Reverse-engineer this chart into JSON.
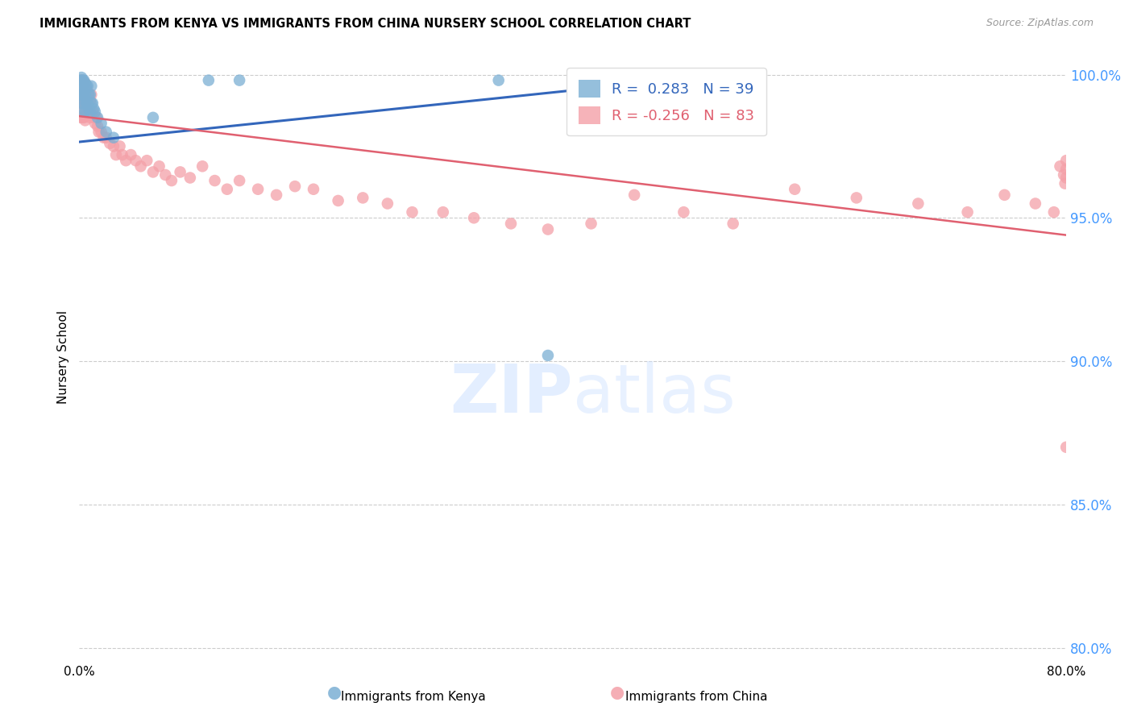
{
  "title": "IMMIGRANTS FROM KENYA VS IMMIGRANTS FROM CHINA NURSERY SCHOOL CORRELATION CHART",
  "source_text": "Source: ZipAtlas.com",
  "ylabel": "Nursery School",
  "xlim": [
    0.0,
    0.8
  ],
  "ylim": [
    0.795,
    1.008
  ],
  "yticks": [
    0.8,
    0.85,
    0.9,
    0.95,
    1.0
  ],
  "ytick_labels": [
    "80.0%",
    "85.0%",
    "90.0%",
    "95.0%",
    "100.0%"
  ],
  "xticks": [
    0.0,
    0.1,
    0.2,
    0.3,
    0.4,
    0.5,
    0.6,
    0.7,
    0.8
  ],
  "xtick_labels": [
    "0.0%",
    "",
    "",
    "",
    "",
    "",
    "",
    "",
    "80.0%"
  ],
  "kenya_R": 0.283,
  "kenya_N": 39,
  "china_R": -0.256,
  "china_N": 83,
  "kenya_color": "#7BAFD4",
  "china_color": "#F4A0A8",
  "kenya_line_color": "#3366BB",
  "china_line_color": "#E06070",
  "kenya_line_x": [
    0.0,
    0.4
  ],
  "kenya_line_y": [
    0.9765,
    0.9945
  ],
  "china_line_x": [
    0.0,
    0.8
  ],
  "china_line_y": [
    0.9855,
    0.944
  ],
  "kenya_x": [
    0.001,
    0.001,
    0.001,
    0.002,
    0.002,
    0.002,
    0.002,
    0.003,
    0.003,
    0.003,
    0.003,
    0.004,
    0.004,
    0.004,
    0.005,
    0.005,
    0.005,
    0.006,
    0.006,
    0.007,
    0.007,
    0.008,
    0.008,
    0.009,
    0.009,
    0.01,
    0.01,
    0.011,
    0.012,
    0.013,
    0.015,
    0.018,
    0.022,
    0.028,
    0.06,
    0.105,
    0.13,
    0.34,
    0.38
  ],
  "kenya_y": [
    0.998,
    0.996,
    0.993,
    0.999,
    0.996,
    0.993,
    0.99,
    0.998,
    0.996,
    0.993,
    0.99,
    0.998,
    0.993,
    0.987,
    0.997,
    0.993,
    0.987,
    0.996,
    0.99,
    0.996,
    0.99,
    0.993,
    0.988,
    0.993,
    0.987,
    0.996,
    0.99,
    0.99,
    0.988,
    0.987,
    0.985,
    0.983,
    0.98,
    0.978,
    0.985,
    0.998,
    0.998,
    0.998,
    0.902
  ],
  "china_x": [
    0.001,
    0.001,
    0.002,
    0.002,
    0.002,
    0.003,
    0.003,
    0.003,
    0.004,
    0.004,
    0.004,
    0.005,
    0.005,
    0.005,
    0.006,
    0.006,
    0.007,
    0.007,
    0.008,
    0.008,
    0.009,
    0.009,
    0.01,
    0.01,
    0.011,
    0.012,
    0.013,
    0.014,
    0.015,
    0.016,
    0.018,
    0.02,
    0.022,
    0.025,
    0.028,
    0.03,
    0.033,
    0.035,
    0.038,
    0.042,
    0.046,
    0.05,
    0.055,
    0.06,
    0.065,
    0.07,
    0.075,
    0.082,
    0.09,
    0.1,
    0.11,
    0.12,
    0.13,
    0.145,
    0.16,
    0.175,
    0.19,
    0.21,
    0.23,
    0.25,
    0.27,
    0.295,
    0.32,
    0.35,
    0.38,
    0.415,
    0.45,
    0.49,
    0.53,
    0.58,
    0.63,
    0.68,
    0.72,
    0.75,
    0.775,
    0.79,
    0.795,
    0.798,
    0.799,
    0.8,
    0.8,
    0.8,
    0.8
  ],
  "china_y": [
    0.99,
    0.985,
    0.998,
    0.993,
    0.987,
    0.998,
    0.993,
    0.985,
    0.996,
    0.99,
    0.985,
    0.997,
    0.99,
    0.984,
    0.995,
    0.988,
    0.994,
    0.987,
    0.993,
    0.986,
    0.991,
    0.985,
    0.993,
    0.986,
    0.987,
    0.985,
    0.983,
    0.985,
    0.982,
    0.98,
    0.98,
    0.978,
    0.978,
    0.976,
    0.975,
    0.972,
    0.975,
    0.972,
    0.97,
    0.972,
    0.97,
    0.968,
    0.97,
    0.966,
    0.968,
    0.965,
    0.963,
    0.966,
    0.964,
    0.968,
    0.963,
    0.96,
    0.963,
    0.96,
    0.958,
    0.961,
    0.96,
    0.956,
    0.957,
    0.955,
    0.952,
    0.952,
    0.95,
    0.948,
    0.946,
    0.948,
    0.958,
    0.952,
    0.948,
    0.96,
    0.957,
    0.955,
    0.952,
    0.958,
    0.955,
    0.952,
    0.968,
    0.965,
    0.962,
    0.97,
    0.967,
    0.964,
    0.87
  ]
}
